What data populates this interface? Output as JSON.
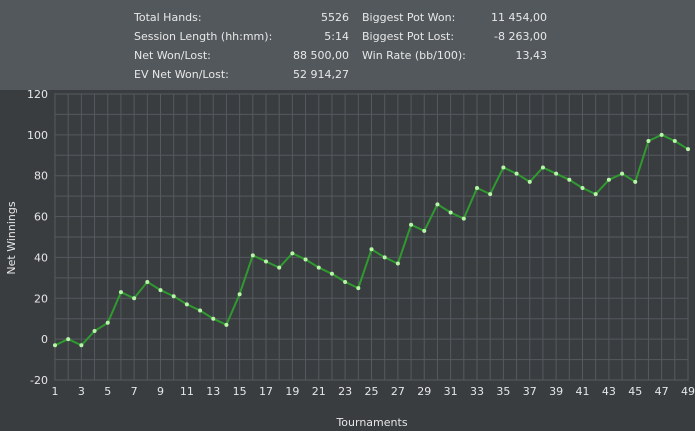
{
  "stats": {
    "left": [
      {
        "label": "Total Hands:",
        "value": "5526"
      },
      {
        "label": "Session Length (hh:mm):",
        "value": "5:14"
      },
      {
        "label": "Net Won/Lost:",
        "value": "88 500,00"
      },
      {
        "label": "EV Net Won/Lost:",
        "value": "52 914,27"
      }
    ],
    "right": [
      {
        "label": "Biggest Pot Won:",
        "value": "11 454,00"
      },
      {
        "label": "Biggest Pot Lost:",
        "value": "-8 263,00"
      },
      {
        "label": "Win Rate (bb/100):",
        "value": "13,43"
      }
    ]
  },
  "colors": {
    "line": "#2f9a2f",
    "marker": "#b8f5a8",
    "grid": "#555a5e",
    "plot_bg": "#393d40",
    "panel_bg": "#53585c"
  },
  "chart_data": {
    "type": "line",
    "xlabel": "Tournaments",
    "ylabel": "Net Winnings",
    "xlim": [
      1,
      49
    ],
    "ylim": [
      -20,
      120
    ],
    "xticks": [
      1,
      3,
      5,
      7,
      9,
      11,
      13,
      15,
      17,
      19,
      21,
      23,
      25,
      27,
      29,
      31,
      33,
      35,
      37,
      39,
      41,
      43,
      45,
      47,
      49
    ],
    "yticks": [
      -20,
      0,
      20,
      40,
      60,
      80,
      100,
      120
    ],
    "grid": true,
    "series": [
      {
        "x": [
          1,
          2,
          3,
          4,
          5,
          6,
          7,
          8,
          9,
          10,
          11,
          12,
          13,
          14,
          15,
          16,
          17,
          18,
          19,
          20,
          21,
          22,
          23,
          24,
          25,
          26,
          27,
          28,
          29,
          30,
          31,
          32,
          33,
          34,
          35,
          36,
          37,
          38,
          39,
          40,
          41,
          42,
          43,
          44,
          45,
          46,
          47,
          48,
          49
        ],
        "values": [
          -3,
          0,
          -3,
          4,
          8,
          23,
          20,
          28,
          24,
          21,
          17,
          14,
          10,
          7,
          22,
          41,
          38,
          35,
          42,
          39,
          35,
          32,
          28,
          25,
          44,
          40,
          37,
          56,
          53,
          66,
          62,
          59,
          74,
          71,
          84,
          81,
          77,
          84,
          81,
          78,
          74,
          71,
          78,
          81,
          77,
          97,
          100,
          97,
          93
        ]
      }
    ]
  }
}
